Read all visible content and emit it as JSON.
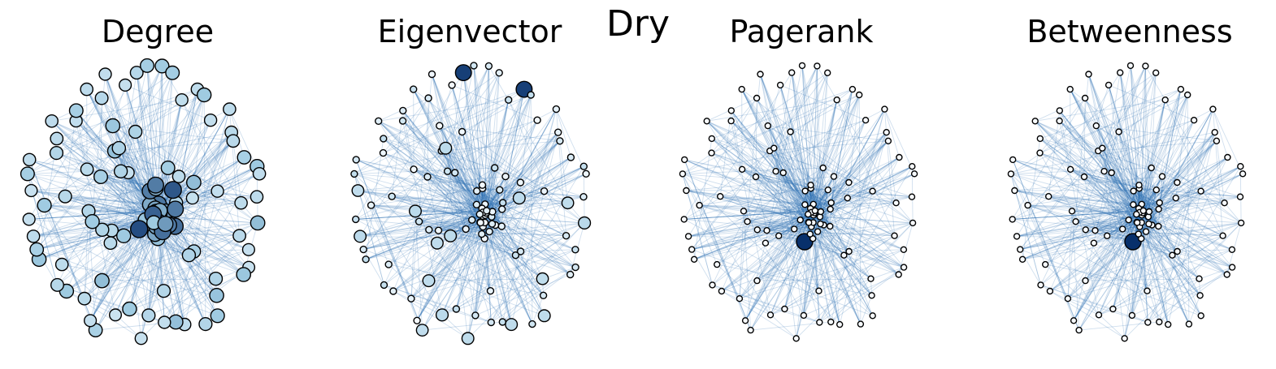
{
  "figure": {
    "title": "Dry",
    "colors": {
      "edge": "#2a6fb0",
      "node_stroke": "#000000",
      "node_low": "#f7fbff",
      "node_mid": "#9ecae1",
      "node_high": "#08306b"
    }
  },
  "panels": [
    {
      "title": "Degree",
      "metric": "degree"
    },
    {
      "title": "Eigenvector",
      "metric": "eigenvector"
    },
    {
      "title": "Pagerank",
      "metric": "pagerank"
    },
    {
      "title": "Betweenness",
      "metric": "betweenness"
    }
  ]
}
